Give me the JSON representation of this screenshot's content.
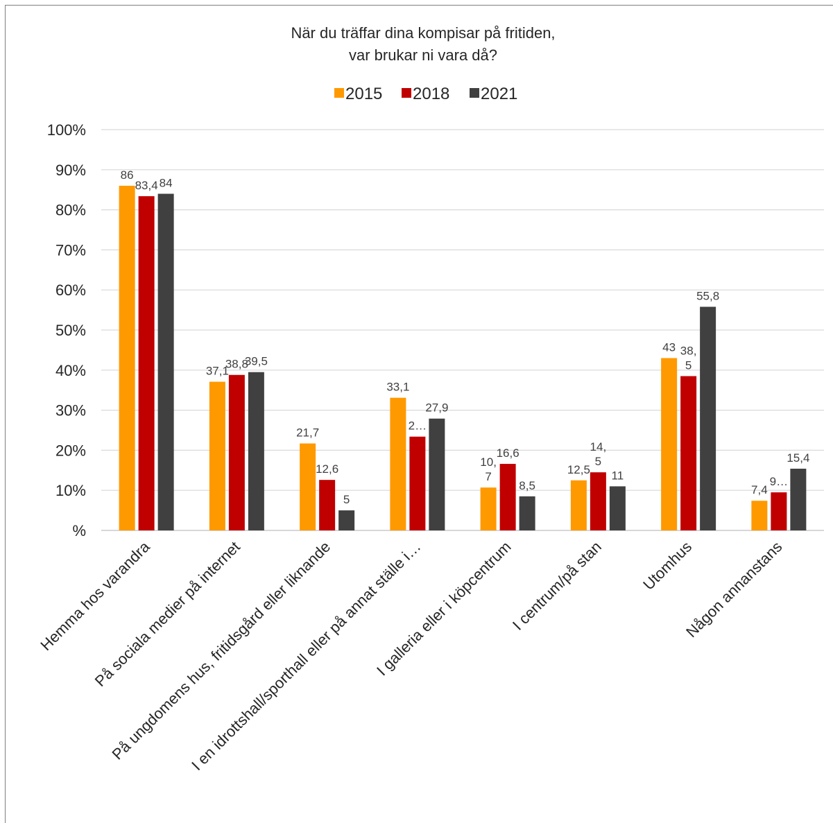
{
  "chart_data": {
    "type": "bar",
    "title": [
      "När du träffar dina kompisar på fritiden,",
      "var brukar ni vara då?"
    ],
    "categories": [
      "Hemma hos varandra",
      "På sociala medier på internet",
      "På ungdomens hus, fritidsgård eller liknande",
      "I en idrottshall/sporthall eller på annat ställe i…",
      "I galleria eller i köpcentrum",
      "I centrum/på stan",
      "Utomhus",
      "Någon annanstans"
    ],
    "series": [
      {
        "name": "2015",
        "color": "#ff9900",
        "values": [
          86,
          37.1,
          21.7,
          33.1,
          10.7,
          12.5,
          43,
          7.4
        ],
        "labels": [
          [
            "86"
          ],
          [
            "37,1"
          ],
          [
            "21,7"
          ],
          [
            "33,1"
          ],
          [
            "10,",
            "7"
          ],
          [
            "12,5"
          ],
          [
            "43"
          ],
          [
            "7,4"
          ]
        ]
      },
      {
        "name": "2018",
        "color": "#c00000",
        "values": [
          83.4,
          38.8,
          12.6,
          23.4,
          16.6,
          14.5,
          38.5,
          9.5
        ],
        "labels": [
          [
            "83,4"
          ],
          [
            "38,8"
          ],
          [
            "12,6"
          ],
          [
            "2…"
          ],
          [
            "16,6"
          ],
          [
            "14,",
            "5"
          ],
          [
            "38,",
            "5"
          ],
          [
            "9…"
          ]
        ]
      },
      {
        "name": "2021",
        "color": "#404040",
        "values": [
          84,
          39.5,
          5,
          27.9,
          8.5,
          11,
          55.8,
          15.4
        ],
        "labels": [
          [
            "84"
          ],
          [
            "39,5"
          ],
          [
            "5"
          ],
          [
            "27,9"
          ],
          [
            "8,5"
          ],
          [
            "11"
          ],
          [
            "55,8"
          ],
          [
            "15,4"
          ]
        ]
      }
    ],
    "yticks": [
      "%",
      "10%",
      "20%",
      "30%",
      "40%",
      "50%",
      "60%",
      "70%",
      "80%",
      "90%",
      "100%"
    ],
    "ylim": [
      0,
      100
    ],
    "grid": true,
    "legend": "top-center"
  }
}
